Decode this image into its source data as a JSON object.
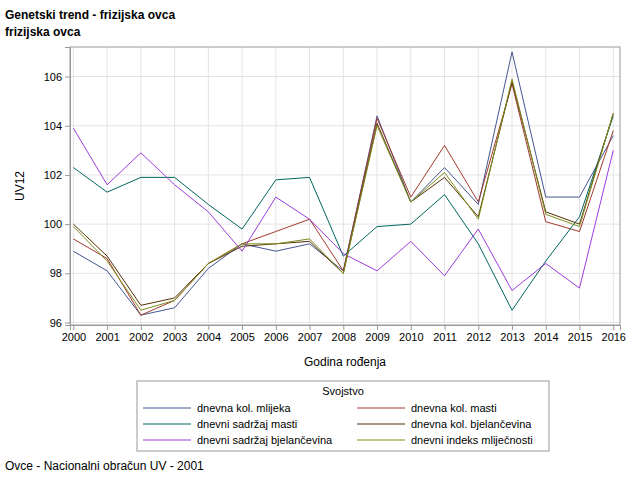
{
  "chart_data": {
    "type": "line",
    "title": "Genetski trend - frizijska ovca",
    "subtitle": "frizijska ovca",
    "x_label": "Godina rođenja",
    "y_label": "UV12",
    "legend_title": "Svojstvo",
    "legend": "bottom",
    "annotations": [
      "Ovce - Nacionalni obračun UV - 2001"
    ],
    "grid": true,
    "x": [
      2000,
      2001,
      2002,
      2003,
      2004,
      2005,
      2006,
      2007,
      2008,
      2009,
      2010,
      2011,
      2012,
      2013,
      2014,
      2015,
      2016
    ],
    "xlim": [
      1999.9,
      2016.2
    ],
    "xticks": [
      2000,
      2001,
      2002,
      2003,
      2004,
      2005,
      2006,
      2007,
      2008,
      2009,
      2010,
      2011,
      2012,
      2013,
      2014,
      2015,
      2016
    ],
    "ylim": [
      95.9,
      107.2
    ],
    "yticks": [
      96,
      98,
      100,
      102,
      104,
      106
    ],
    "series": [
      {
        "name": "dnevna kol. mlijeka",
        "color": "#445694",
        "values": [
          98.9,
          98.1,
          96.3,
          96.6,
          98.2,
          99.2,
          98.9,
          99.2,
          98.1,
          104.4,
          100.9,
          102.3,
          100.8,
          107.0,
          101.1,
          101.1,
          103.6
        ]
      },
      {
        "name": "dnevna kol. masti",
        "color": "#A23A2E",
        "values": [
          99.4,
          98.6,
          96.3,
          96.9,
          98.4,
          99.2,
          99.7,
          100.2,
          98.1,
          104.3,
          101.1,
          103.2,
          100.9,
          105.7,
          100.1,
          99.7,
          103.8
        ]
      },
      {
        "name": "dnevni sadržaj masti",
        "color": "#01665E",
        "values": [
          102.3,
          101.3,
          101.9,
          101.9,
          100.8,
          99.8,
          101.8,
          101.9,
          98.7,
          99.9,
          100.0,
          101.2,
          99.2,
          96.5,
          98.5,
          100.3,
          104.4
        ]
      },
      {
        "name": "dnevna kol. bjelančevina",
        "color": "#543005",
        "values": [
          100.0,
          98.7,
          96.7,
          97.0,
          98.4,
          99.1,
          99.2,
          99.3,
          98.0,
          104.1,
          100.9,
          101.9,
          100.3,
          105.8,
          100.5,
          100.0,
          104.5
        ]
      },
      {
        "name": "dnevni sadržaj bjelančevina",
        "color": "#9D3CDB",
        "values": [
          103.9,
          101.6,
          102.9,
          101.6,
          100.5,
          98.9,
          101.1,
          100.2,
          98.8,
          98.1,
          99.3,
          97.9,
          99.8,
          97.3,
          98.4,
          97.4,
          103.0
        ]
      },
      {
        "name": "dnevni indeks mliječnosti",
        "color": "#7F8E1F",
        "values": [
          99.9,
          98.5,
          96.5,
          96.9,
          98.4,
          99.2,
          99.2,
          99.4,
          98.0,
          104.0,
          100.9,
          102.1,
          100.2,
          105.9,
          100.4,
          99.9,
          104.5
        ]
      }
    ]
  }
}
